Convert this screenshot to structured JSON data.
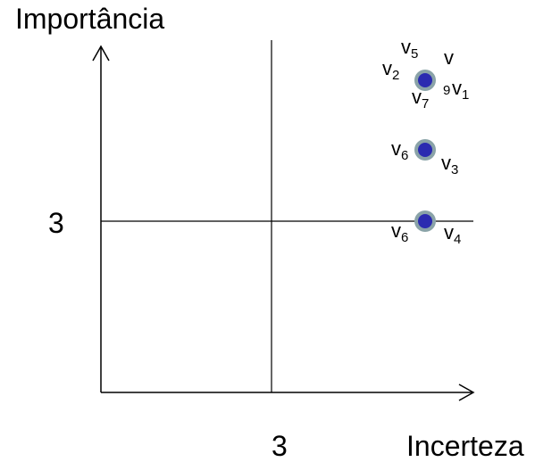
{
  "axes": {
    "y_title": "Importância",
    "x_title": "Incerteza",
    "y_threshold_label": "3",
    "x_threshold_label": "3"
  },
  "colors": {
    "point_fill": "#2b2bb0",
    "point_ring": "#8aa3a8",
    "line": "#000000"
  },
  "clusters": [
    {
      "labels": [
        {
          "base": "v",
          "sub": "2"
        },
        {
          "base": "v",
          "sub": "5"
        },
        {
          "base": "v",
          "sub": ""
        },
        {
          "base": "v",
          "sub": "7"
        },
        {
          "base": "",
          "sub": "",
          "note": "9"
        },
        {
          "base": "v",
          "sub": "1"
        }
      ]
    },
    {
      "labels": [
        {
          "base": "v",
          "sub": "6"
        },
        {
          "base": "v",
          "sub": "3"
        }
      ]
    },
    {
      "labels": [
        {
          "base": "v",
          "sub": "6"
        },
        {
          "base": "v",
          "sub": "4"
        }
      ]
    }
  ]
}
